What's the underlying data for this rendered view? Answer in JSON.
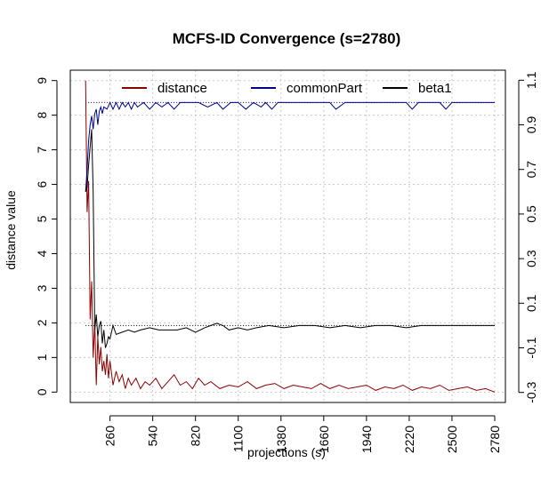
{
  "chart_data": {
    "type": "line",
    "title": "MCFS-ID Convergence (s=2780)",
    "xlabel": "projections (s)",
    "ylabel": "distance value",
    "xlim": [
      0,
      2850
    ],
    "ylim": [
      -0.3,
      9.3
    ],
    "y2lim": [
      -0.345,
      1.145
    ],
    "x_ticks": [
      260,
      540,
      820,
      1100,
      1380,
      1660,
      1940,
      2220,
      2500,
      2780
    ],
    "y_ticks": [
      0,
      1,
      2,
      3,
      4,
      5,
      6,
      7,
      8,
      9
    ],
    "y2_ticks": [
      -0.3,
      -0.1,
      0.1,
      0.3,
      0.5,
      0.7,
      0.9,
      1.1
    ],
    "grid": true,
    "legend_position": "top",
    "colors": {
      "distance": "#8b0000",
      "commonPart": "#00008b",
      "beta1": "#000000",
      "grid": "#c8c8c8"
    },
    "series": [
      {
        "name": "distance",
        "axis": "left",
        "x": [
          100,
          110,
          120,
          130,
          140,
          150,
          160,
          170,
          180,
          190,
          200,
          210,
          220,
          230,
          240,
          250,
          260,
          280,
          300,
          320,
          340,
          360,
          380,
          400,
          430,
          460,
          490,
          520,
          560,
          600,
          640,
          680,
          720,
          760,
          800,
          840,
          880,
          920,
          980,
          1040,
          1100,
          1160,
          1220,
          1280,
          1340,
          1400,
          1460,
          1520,
          1580,
          1640,
          1700,
          1760,
          1820,
          1880,
          1940,
          2000,
          2060,
          2120,
          2180,
          2240,
          2300,
          2360,
          2420,
          2480,
          2540,
          2600,
          2660,
          2720,
          2780
        ],
        "values": [
          9.0,
          5.2,
          6.1,
          2.1,
          3.2,
          1.0,
          2.0,
          0.2,
          1.6,
          0.8,
          1.3,
          0.6,
          0.9,
          0.5,
          1.1,
          0.4,
          0.9,
          0.2,
          0.6,
          0.3,
          0.5,
          0.1,
          0.4,
          0.2,
          0.4,
          0.1,
          0.3,
          0.2,
          0.4,
          0.1,
          0.3,
          0.5,
          0.2,
          0.3,
          0.1,
          0.4,
          0.2,
          0.3,
          0.1,
          0.2,
          0.15,
          0.3,
          0.1,
          0.2,
          0.25,
          0.1,
          0.2,
          0.15,
          0.1,
          0.25,
          0.1,
          0.2,
          0.1,
          0.15,
          0.2,
          0.05,
          0.15,
          0.1,
          0.2,
          0.05,
          0.15,
          0.1,
          0.2,
          0.05,
          0.1,
          0.15,
          0.05,
          0.1,
          0.0
        ]
      },
      {
        "name": "commonPart",
        "axis": "right",
        "x": [
          100,
          110,
          120,
          130,
          140,
          150,
          160,
          170,
          180,
          190,
          200,
          210,
          220,
          240,
          260,
          280,
          300,
          320,
          340,
          360,
          380,
          400,
          420,
          440,
          480,
          520,
          560,
          600,
          640,
          680,
          720,
          760,
          800,
          840,
          900,
          960,
          1000,
          1050,
          1100,
          1150,
          1200,
          1250,
          1280,
          1320,
          1360,
          1400,
          1500,
          1600,
          1700,
          1740,
          1800,
          1900,
          2000,
          2100,
          2200,
          2240,
          2280,
          2360,
          2420,
          2460,
          2500,
          2600,
          2700,
          2780
        ],
        "values": [
          0.6,
          0.7,
          0.83,
          0.9,
          0.94,
          0.88,
          0.95,
          0.97,
          0.9,
          0.96,
          0.98,
          0.95,
          0.98,
          0.97,
          1.0,
          0.97,
          1.0,
          0.97,
          1.0,
          0.98,
          1.0,
          0.97,
          1.0,
          0.98,
          1.0,
          0.97,
          1.0,
          0.98,
          1.0,
          0.97,
          1.0,
          1.0,
          1.0,
          1.0,
          0.98,
          1.0,
          0.97,
          1.0,
          1.0,
          0.97,
          1.0,
          0.98,
          1.0,
          0.97,
          1.0,
          1.0,
          1.0,
          1.0,
          1.0,
          0.97,
          1.0,
          1.0,
          1.0,
          1.0,
          1.0,
          0.97,
          1.0,
          1.0,
          1.0,
          0.97,
          1.0,
          1.0,
          1.0,
          1.0
        ]
      },
      {
        "name": "beta1",
        "axis": "right",
        "x": [
          100,
          110,
          120,
          130,
          140,
          150,
          160,
          170,
          180,
          190,
          200,
          210,
          220,
          230,
          240,
          250,
          260,
          280,
          300,
          340,
          380,
          420,
          460,
          520,
          580,
          640,
          700,
          760,
          820,
          880,
          920,
          960,
          1000,
          1040,
          1100,
          1160,
          1220,
          1300,
          1400,
          1500,
          1600,
          1700,
          1800,
          1900,
          2000,
          2100,
          2200,
          2300,
          2400,
          2500,
          2600,
          2700,
          2780
        ],
        "values": [
          0.6,
          0.62,
          0.72,
          0.8,
          0.88,
          0.6,
          -0.02,
          0.05,
          -0.05,
          0.0,
          0.02,
          -0.08,
          -0.02,
          -0.1,
          -0.08,
          -0.05,
          -0.06,
          0.0,
          -0.04,
          -0.03,
          -0.02,
          -0.03,
          -0.02,
          -0.01,
          -0.02,
          -0.02,
          -0.02,
          -0.01,
          -0.03,
          -0.01,
          0.0,
          0.01,
          0.0,
          -0.02,
          -0.01,
          -0.02,
          -0.01,
          0.0,
          -0.01,
          0.0,
          0.0,
          -0.01,
          0.0,
          -0.01,
          0.0,
          0.0,
          -0.01,
          0.0,
          0.0,
          0.0,
          0.0,
          0.0,
          0.0
        ]
      }
    ]
  }
}
